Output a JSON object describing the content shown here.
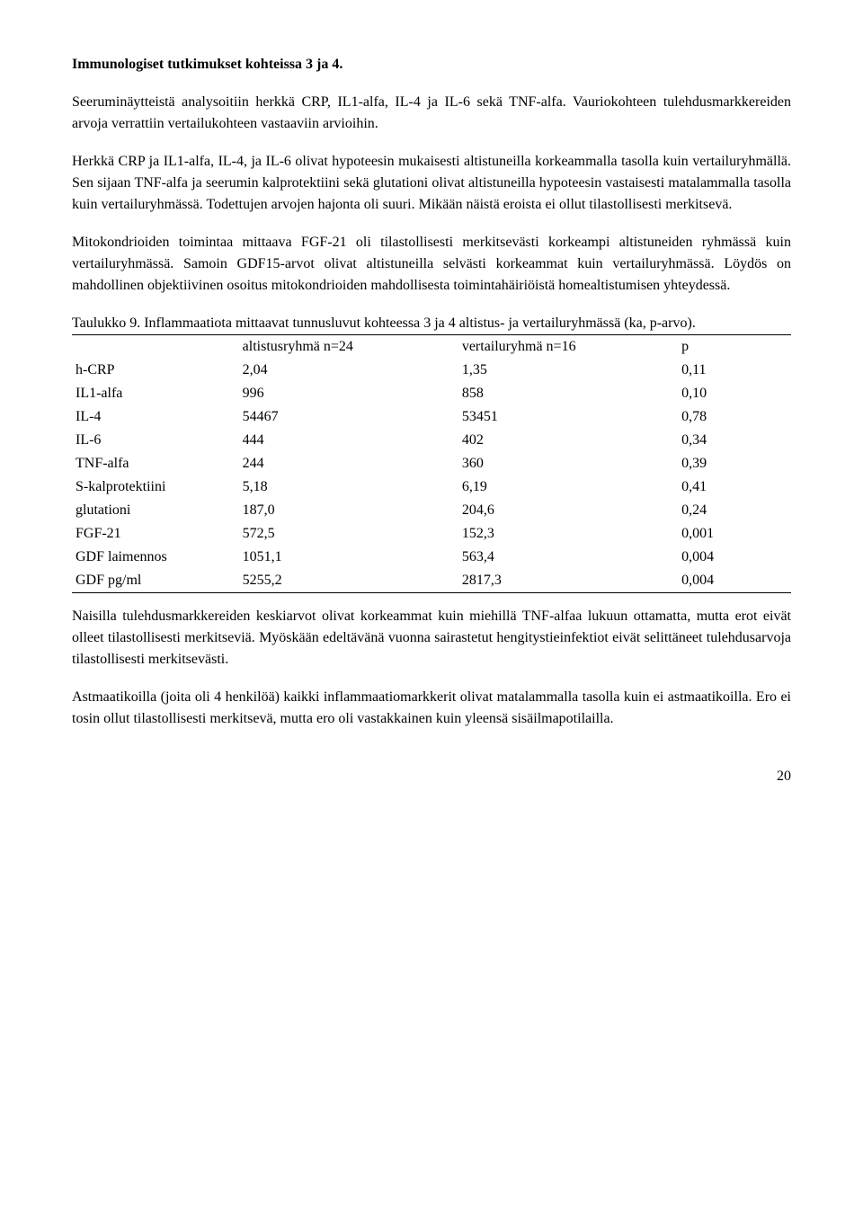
{
  "heading1": "Immunologiset tutkimukset kohteissa 3 ja 4.",
  "para1": "Seeruminäytteistä analysoitiin herkkä CRP, IL1-alfa, IL-4 ja IL-6 sekä TNF-alfa. Vauriokohteen tulehdusmarkkereiden arvoja verrattiin vertailukohteen vastaaviin arvioihin.",
  "para2": "Herkkä CRP ja IL1-alfa, IL-4, ja IL-6 olivat hypoteesin mukaisesti altistuneilla korkeammalla tasolla kuin vertailuryhmällä. Sen sijaan TNF-alfa ja seerumin kalprotektiini sekä glutationi olivat altistuneilla hypoteesin vastaisesti matalammalla tasolla kuin vertailuryhmässä. Todettujen arvojen hajonta oli suuri. Mikään näistä eroista ei ollut tilastollisesti merkitsevä.",
  "para3": "Mitokondrioiden toimintaa mittaava FGF-21 oli tilastollisesti merkitsevästi korkeampi altistuneiden ryhmässä kuin vertailuryhmässä. Samoin GDF15-arvot olivat altistuneilla selvästi korkeammat kuin vertailuryhmässä. Löydös on mahdollinen objektiivinen osoitus mitokondrioiden mahdollisesta toimintahäiriöistä homealtistumisen yhteydessä.",
  "table_caption": "Taulukko 9. Inflammaatiota mittaavat tunnusluvut kohteessa 3 ja 4 altistus- ja vertailuryhmässä (ka, p-arvo).",
  "table": {
    "header": [
      "",
      "altistusryhmä n=24",
      "vertailuryhmä n=16",
      "p"
    ],
    "rows": [
      [
        "h-CRP",
        "2,04",
        "1,35",
        "0,11"
      ],
      [
        "IL1-alfa",
        "996",
        "858",
        "0,10"
      ],
      [
        "IL-4",
        "54467",
        "53451",
        "0,78"
      ],
      [
        "IL-6",
        "444",
        "402",
        "0,34"
      ],
      [
        "TNF-alfa",
        "244",
        "360",
        "0,39"
      ],
      [
        "S-kalprotektiini",
        "5,18",
        "6,19",
        "0,41"
      ],
      [
        "glutationi",
        "187,0",
        "204,6",
        "0,24"
      ],
      [
        "FGF-21",
        "572,5",
        "152,3",
        "0,001"
      ],
      [
        "GDF laimennos",
        "1051,1",
        "563,4",
        "0,004"
      ],
      [
        "GDF pg/ml",
        "5255,2",
        "2817,3",
        "0,004"
      ]
    ]
  },
  "para4": "Naisilla tulehdusmarkkereiden keskiarvot olivat korkeammat kuin miehillä TNF-alfaa lukuun ottamatta, mutta erot eivät olleet tilastollisesti merkitseviä. Myöskään edeltävänä vuonna sairastetut hengitystieinfektiot eivät selittäneet tulehdusarvoja tilastollisesti merkitsevästi.",
  "para5": "Astmaatikoilla (joita oli 4 henkilöä) kaikki inflammaatiomarkkerit olivat matalammalla tasolla kuin ei astmaatikoilla. Ero ei tosin ollut tilastollisesti merkitsevä, mutta ero oli vastakkainen kuin yleensä sisäilmapotilailla.",
  "page_number": "20"
}
